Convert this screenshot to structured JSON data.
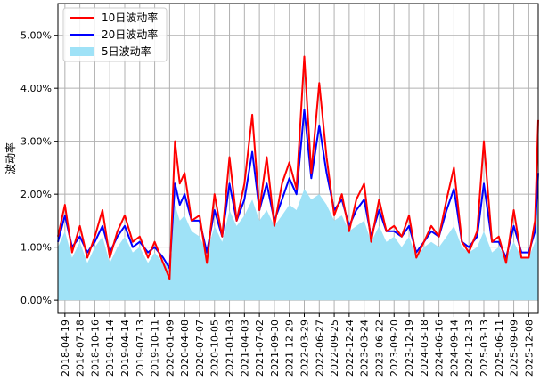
{
  "chart_data": {
    "type": "line",
    "title": "",
    "xlabel": "",
    "ylabel": "波动率",
    "grid": true,
    "legend_position": "top-left",
    "ylim": [
      -0.0025,
      0.056
    ],
    "ytick_values": [
      0.0,
      0.01,
      0.02,
      0.03,
      0.04,
      0.05
    ],
    "ytick_labels": [
      "0.00%",
      "1.00%",
      "2.00%",
      "3.00%",
      "4.00%",
      "5.00%"
    ],
    "xticks": [
      "2018-04-19",
      "2018-07-18",
      "2018-10-16",
      "2019-01-14",
      "2019-04-14",
      "2019-07-13",
      "2019-10-11",
      "2020-01-09",
      "2020-04-08",
      "2020-07-07",
      "2020-10-05",
      "2021-01-03",
      "2021-04-03",
      "2021-07-02",
      "2021-09-30",
      "2021-12-29",
      "2022-03-29",
      "2022-06-27",
      "2022-09-25",
      "2022-12-24",
      "2023-03-24",
      "2023-06-22",
      "2023-09-20",
      "2023-12-19",
      "2024-03-18",
      "2024-06-16",
      "2024-09-14",
      "2024-12-13",
      "2025-03-13",
      "2025-06-11",
      "2025-09-09",
      "2025-12-08"
    ],
    "xrange": [
      "2018-03-08",
      "2026-02-03"
    ],
    "x": [
      "2018-03-08",
      "2018-04-19",
      "2018-06-01",
      "2018-07-18",
      "2018-09-01",
      "2018-10-16",
      "2018-12-01",
      "2019-01-14",
      "2019-03-01",
      "2019-04-14",
      "2019-06-01",
      "2019-07-13",
      "2019-09-01",
      "2019-10-11",
      "2019-12-01",
      "2020-01-09",
      "2020-02-10",
      "2020-03-10",
      "2020-04-08",
      "2020-05-20",
      "2020-07-07",
      "2020-08-20",
      "2020-10-05",
      "2020-11-20",
      "2021-01-03",
      "2021-02-15",
      "2021-04-03",
      "2021-05-20",
      "2021-07-02",
      "2021-08-15",
      "2021-09-30",
      "2021-11-15",
      "2021-12-29",
      "2022-02-10",
      "2022-03-29",
      "2022-05-10",
      "2022-06-27",
      "2022-08-10",
      "2022-09-25",
      "2022-11-10",
      "2022-12-24",
      "2023-02-05",
      "2023-03-24",
      "2023-05-05",
      "2023-06-22",
      "2023-08-05",
      "2023-09-20",
      "2023-11-05",
      "2023-12-19",
      "2024-02-01",
      "2024-03-18",
      "2024-05-01",
      "2024-06-16",
      "2024-08-01",
      "2024-09-14",
      "2024-11-01",
      "2024-12-13",
      "2025-02-01",
      "2025-03-13",
      "2025-05-01",
      "2025-06-11",
      "2025-07-25",
      "2025-09-09",
      "2025-10-25",
      "2025-12-08",
      "2026-01-15",
      "2026-02-03"
    ],
    "series": [
      {
        "name": "10日波动率",
        "color": "#ff0000",
        "type": "line",
        "values": [
          0.012,
          0.018,
          0.009,
          0.014,
          0.008,
          0.012,
          0.017,
          0.008,
          0.013,
          0.016,
          0.011,
          0.012,
          0.008,
          0.011,
          0.007,
          0.004,
          0.03,
          0.022,
          0.024,
          0.015,
          0.016,
          0.007,
          0.02,
          0.012,
          0.027,
          0.015,
          0.022,
          0.035,
          0.017,
          0.027,
          0.014,
          0.022,
          0.026,
          0.021,
          0.046,
          0.024,
          0.041,
          0.027,
          0.016,
          0.02,
          0.013,
          0.019,
          0.022,
          0.011,
          0.019,
          0.013,
          0.014,
          0.012,
          0.016,
          0.008,
          0.011,
          0.014,
          0.012,
          0.019,
          0.025,
          0.011,
          0.009,
          0.013,
          0.03,
          0.011,
          0.012,
          0.007,
          0.017,
          0.008,
          0.008,
          0.015,
          0.034
        ]
      },
      {
        "name": "20日波动率",
        "color": "#0000ff",
        "type": "line",
        "values": [
          0.011,
          0.016,
          0.01,
          0.012,
          0.009,
          0.011,
          0.014,
          0.009,
          0.012,
          0.014,
          0.01,
          0.011,
          0.009,
          0.01,
          0.008,
          0.006,
          0.022,
          0.018,
          0.02,
          0.015,
          0.015,
          0.009,
          0.017,
          0.012,
          0.022,
          0.015,
          0.019,
          0.028,
          0.017,
          0.022,
          0.015,
          0.019,
          0.023,
          0.02,
          0.036,
          0.023,
          0.033,
          0.024,
          0.017,
          0.019,
          0.014,
          0.017,
          0.019,
          0.012,
          0.017,
          0.013,
          0.013,
          0.012,
          0.014,
          0.009,
          0.011,
          0.013,
          0.012,
          0.017,
          0.021,
          0.011,
          0.01,
          0.012,
          0.022,
          0.011,
          0.011,
          0.008,
          0.014,
          0.009,
          0.009,
          0.013,
          0.024
        ]
      },
      {
        "name": "5日波动率",
        "color": "#9fe2f7",
        "type": "area",
        "values": [
          0.01,
          0.013,
          0.008,
          0.011,
          0.007,
          0.01,
          0.012,
          0.007,
          0.01,
          0.012,
          0.009,
          0.01,
          0.007,
          0.009,
          0.007,
          0.007,
          0.018,
          0.015,
          0.016,
          0.013,
          0.012,
          0.009,
          0.014,
          0.011,
          0.017,
          0.014,
          0.016,
          0.019,
          0.015,
          0.017,
          0.014,
          0.016,
          0.018,
          0.017,
          0.021,
          0.019,
          0.02,
          0.018,
          0.015,
          0.016,
          0.013,
          0.014,
          0.015,
          0.011,
          0.014,
          0.011,
          0.012,
          0.01,
          0.012,
          0.008,
          0.01,
          0.011,
          0.01,
          0.012,
          0.014,
          0.01,
          0.009,
          0.01,
          0.013,
          0.009,
          0.01,
          0.008,
          0.011,
          0.008,
          0.008,
          0.011,
          0.02
        ]
      }
    ]
  }
}
